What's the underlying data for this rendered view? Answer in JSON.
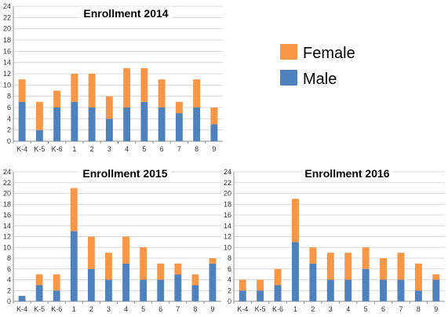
{
  "colors": {
    "male": "#4f81bd",
    "female": "#f79646",
    "grid": "#d9d9d9",
    "axis": "#8c8c8c"
  },
  "legend": {
    "entries": [
      {
        "label": "Female",
        "color": "#f79646"
      },
      {
        "label": "Male",
        "color": "#4f81bd"
      }
    ]
  },
  "chart_data": [
    {
      "type": "bar",
      "stacked": true,
      "title": "Enrollment 2014",
      "xlabel": "",
      "ylabel": "",
      "ylim": [
        0,
        24
      ],
      "yticks": [
        0,
        2,
        4,
        6,
        8,
        10,
        12,
        14,
        16,
        18,
        20,
        22,
        24
      ],
      "grid": true,
      "categories": [
        "K-4",
        "K-5",
        "K-6",
        "1",
        "2",
        "3",
        "4",
        "5",
        "6",
        "7",
        "8",
        "9"
      ],
      "series": [
        {
          "name": "Male",
          "values": [
            7,
            2,
            6,
            7,
            6,
            4,
            6,
            7,
            6,
            5,
            6,
            3
          ]
        },
        {
          "name": "Female",
          "values": [
            4,
            5,
            3,
            5,
            6,
            4,
            7,
            6,
            5,
            2,
            5,
            3
          ]
        }
      ]
    },
    {
      "type": "bar",
      "stacked": true,
      "title": "Enrollment 2015",
      "xlabel": "",
      "ylabel": "",
      "ylim": [
        0,
        24
      ],
      "yticks": [
        0,
        2,
        4,
        6,
        8,
        10,
        12,
        14,
        16,
        18,
        20,
        22,
        24
      ],
      "grid": true,
      "categories": [
        "K-4",
        "K-5",
        "K-6",
        "1",
        "2",
        "3",
        "4",
        "5",
        "6",
        "7",
        "8",
        "9"
      ],
      "series": [
        {
          "name": "Male",
          "values": [
            1,
            3,
            2,
            13,
            6,
            4,
            7,
            4,
            4,
            5,
            3,
            7
          ]
        },
        {
          "name": "Female",
          "values": [
            0,
            2,
            3,
            8,
            6,
            5,
            5,
            6,
            3,
            2,
            2,
            1
          ]
        }
      ]
    },
    {
      "type": "bar",
      "stacked": true,
      "title": "Enrollment 2016",
      "xlabel": "",
      "ylabel": "",
      "ylim": [
        0,
        24
      ],
      "yticks": [
        0,
        2,
        4,
        6,
        8,
        10,
        12,
        14,
        16,
        18,
        20,
        22,
        24
      ],
      "grid": true,
      "categories": [
        "K-4",
        "K-5",
        "K-6",
        "1",
        "2",
        "3",
        "4",
        "5",
        "6",
        "7",
        "8",
        "9"
      ],
      "series": [
        {
          "name": "Male",
          "values": [
            2,
            2,
            3,
            11,
            7,
            4,
            4,
            6,
            4,
            4,
            2,
            4
          ]
        },
        {
          "name": "Female",
          "values": [
            2,
            2,
            3,
            8,
            3,
            5,
            5,
            4,
            4,
            5,
            5,
            1
          ]
        }
      ]
    }
  ]
}
